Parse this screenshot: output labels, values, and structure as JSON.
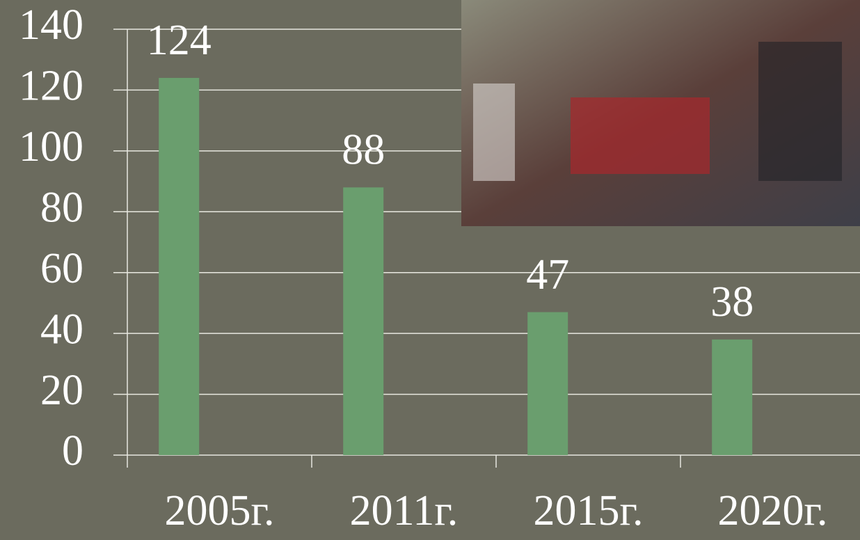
{
  "chart_data": {
    "type": "bar",
    "categories": [
      "2005г.",
      "2011г.",
      "2015г.",
      "2020г."
    ],
    "values": [
      124,
      88,
      47,
      38
    ],
    "color": "#6a9e6e",
    "ylim": [
      0,
      140
    ],
    "yticks": [
      0,
      20,
      40,
      60,
      80,
      100,
      120,
      140
    ],
    "grid": true
  }
}
